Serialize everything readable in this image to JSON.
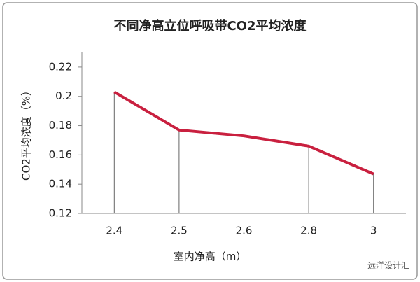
{
  "chart_data": {
    "type": "line",
    "title": "不同净高立位呼吸带CO2平均浓度",
    "x_label": "室内净高（m）",
    "y_label": "CO2平均浓度（%）",
    "categories": [
      "2.4",
      "2.5",
      "2.6",
      "2.8",
      "3"
    ],
    "series": [
      {
        "name": "CO2平均浓度",
        "color": "#c9203f",
        "values": [
          0.203,
          0.177,
          0.173,
          0.166,
          0.147
        ]
      }
    ],
    "ylim": [
      0.12,
      0.23
    ],
    "yticks": [
      0.12,
      0.14,
      0.16,
      0.18,
      0.2,
      0.22
    ],
    "drop_lines": true,
    "watermark": "远洋设计汇"
  }
}
